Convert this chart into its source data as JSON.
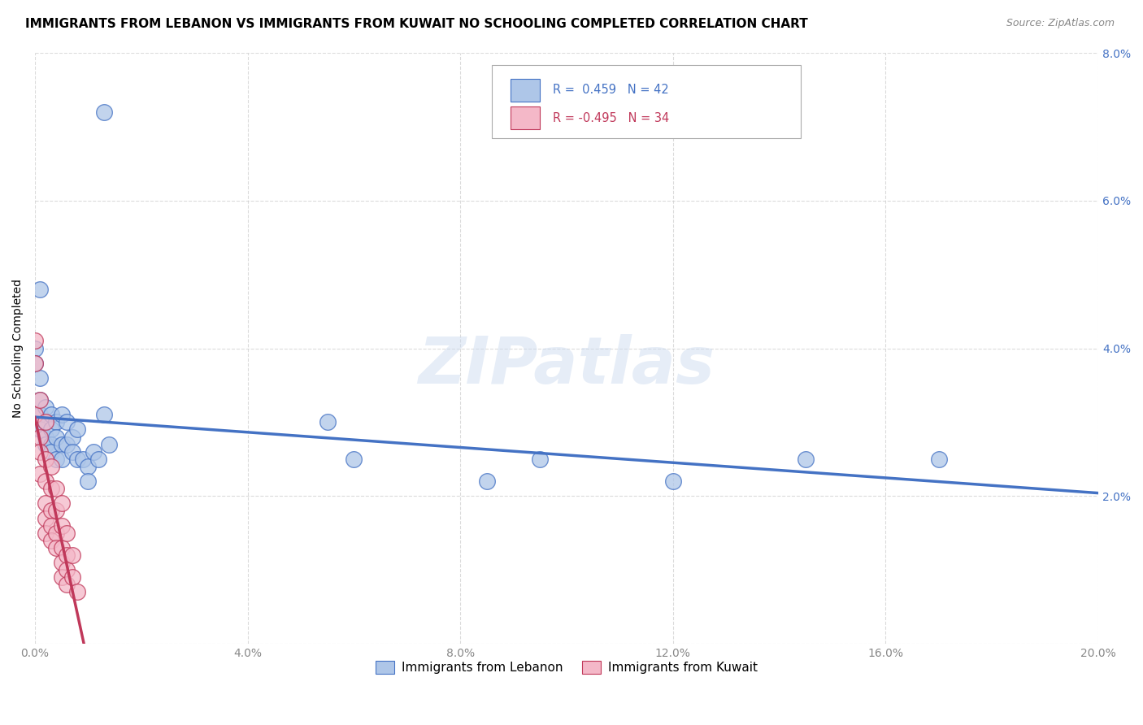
{
  "title": "IMMIGRANTS FROM LEBANON VS IMMIGRANTS FROM KUWAIT NO SCHOOLING COMPLETED CORRELATION CHART",
  "source": "Source: ZipAtlas.com",
  "xlabel": "",
  "ylabel": "No Schooling Completed",
  "legend_label1": "Immigrants from Lebanon",
  "legend_label2": "Immigrants from Kuwait",
  "R1": 0.459,
  "N1": 42,
  "R2": -0.495,
  "N2": 34,
  "color1": "#aec6e8",
  "color2": "#f4b8c8",
  "line_color1": "#4472c4",
  "line_color2": "#c0385a",
  "xlim": [
    0.0,
    0.2
  ],
  "ylim": [
    0.0,
    0.08
  ],
  "xticks": [
    0.0,
    0.04,
    0.08,
    0.12,
    0.16,
    0.2
  ],
  "yticks": [
    0.0,
    0.02,
    0.04,
    0.06,
    0.08
  ],
  "blue_points": [
    [
      0.001,
      0.048
    ],
    [
      0.0,
      0.04
    ],
    [
      0.0,
      0.038
    ],
    [
      0.001,
      0.036
    ],
    [
      0.001,
      0.033
    ],
    [
      0.001,
      0.031
    ],
    [
      0.001,
      0.029
    ],
    [
      0.002,
      0.032
    ],
    [
      0.002,
      0.03
    ],
    [
      0.002,
      0.028
    ],
    [
      0.002,
      0.027
    ],
    [
      0.003,
      0.031
    ],
    [
      0.003,
      0.029
    ],
    [
      0.003,
      0.027
    ],
    [
      0.003,
      0.026
    ],
    [
      0.004,
      0.03
    ],
    [
      0.004,
      0.028
    ],
    [
      0.004,
      0.025
    ],
    [
      0.005,
      0.031
    ],
    [
      0.005,
      0.027
    ],
    [
      0.005,
      0.025
    ],
    [
      0.006,
      0.03
    ],
    [
      0.006,
      0.027
    ],
    [
      0.007,
      0.028
    ],
    [
      0.007,
      0.026
    ],
    [
      0.008,
      0.029
    ],
    [
      0.008,
      0.025
    ],
    [
      0.009,
      0.025
    ],
    [
      0.01,
      0.024
    ],
    [
      0.01,
      0.022
    ],
    [
      0.011,
      0.026
    ],
    [
      0.012,
      0.025
    ],
    [
      0.013,
      0.031
    ],
    [
      0.014,
      0.027
    ],
    [
      0.055,
      0.03
    ],
    [
      0.06,
      0.025
    ],
    [
      0.085,
      0.022
    ],
    [
      0.095,
      0.025
    ],
    [
      0.12,
      0.022
    ],
    [
      0.145,
      0.025
    ],
    [
      0.17,
      0.025
    ],
    [
      0.013,
      0.072
    ]
  ],
  "pink_points": [
    [
      0.0,
      0.041
    ],
    [
      0.0,
      0.031
    ],
    [
      0.0,
      0.038
    ],
    [
      0.001,
      0.033
    ],
    [
      0.001,
      0.028
    ],
    [
      0.001,
      0.026
    ],
    [
      0.001,
      0.023
    ],
    [
      0.002,
      0.03
    ],
    [
      0.002,
      0.025
    ],
    [
      0.002,
      0.022
    ],
    [
      0.002,
      0.019
    ],
    [
      0.002,
      0.017
    ],
    [
      0.002,
      0.015
    ],
    [
      0.003,
      0.024
    ],
    [
      0.003,
      0.021
    ],
    [
      0.003,
      0.018
    ],
    [
      0.003,
      0.016
    ],
    [
      0.003,
      0.014
    ],
    [
      0.004,
      0.021
    ],
    [
      0.004,
      0.018
    ],
    [
      0.004,
      0.015
    ],
    [
      0.004,
      0.013
    ],
    [
      0.005,
      0.019
    ],
    [
      0.005,
      0.016
    ],
    [
      0.005,
      0.013
    ],
    [
      0.005,
      0.011
    ],
    [
      0.005,
      0.009
    ],
    [
      0.006,
      0.015
    ],
    [
      0.006,
      0.012
    ],
    [
      0.006,
      0.01
    ],
    [
      0.006,
      0.008
    ],
    [
      0.007,
      0.012
    ],
    [
      0.007,
      0.009
    ],
    [
      0.008,
      0.007
    ]
  ],
  "watermark": "ZIPatlas",
  "background_color": "#ffffff",
  "grid_color": "#cccccc",
  "title_fontsize": 11,
  "axis_fontsize": 10,
  "tick_fontsize": 10
}
